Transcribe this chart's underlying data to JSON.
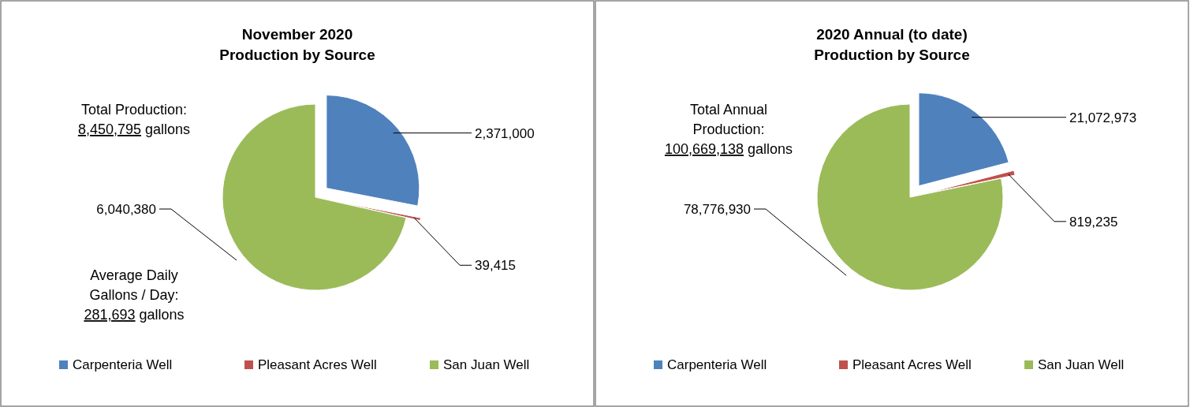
{
  "chart_data": [
    {
      "type": "pie",
      "title": "November 2020\nProduction by Source",
      "categories": [
        "Carpenteria Well",
        "Pleasant Acres Well",
        "San Juan Well"
      ],
      "values": [
        2371000,
        39415,
        6040380
      ],
      "value_labels": [
        "2,371,000",
        "39,415",
        "6,040,380"
      ],
      "colors": [
        "#4f81bd",
        "#c0504d",
        "#9bbb59"
      ],
      "legend": "bottom",
      "annotations": [
        "Total Production:\n8,450,795 gallons",
        "Average Daily\nGallons / Day:\n281,693 gallons"
      ]
    },
    {
      "type": "pie",
      "title": "2020 Annual (to date)\nProduction by Source",
      "categories": [
        "Carpenteria Well",
        "Pleasant Acres Well",
        "San Juan Well"
      ],
      "values": [
        21072973,
        819235,
        78776930
      ],
      "value_labels": [
        "21,072,973",
        "819,235",
        "78,776,930"
      ],
      "colors": [
        "#4f81bd",
        "#c0504d",
        "#9bbb59"
      ],
      "legend": "bottom",
      "annotations": [
        "Total Annual\nProduction:\n100,669,138 gallons"
      ]
    }
  ]
}
